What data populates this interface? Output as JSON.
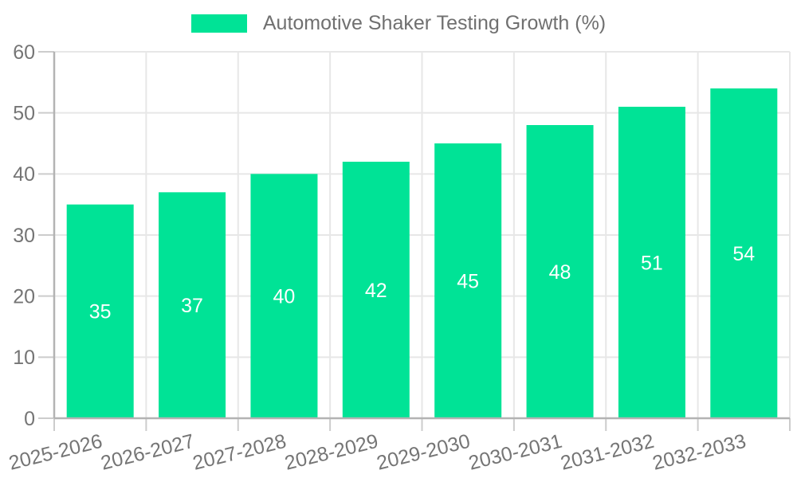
{
  "chart_data": {
    "type": "bar",
    "title": "Automotive Shaker Testing Growth (%)",
    "categories": [
      "2025-2026",
      "2026-2027",
      "2027-2028",
      "2028-2029",
      "2029-2030",
      "2030-2031",
      "2031-2032",
      "2032-2033"
    ],
    "series": [
      {
        "name": "Automotive Shaker Testing Growth (%)",
        "values": [
          35,
          37,
          40,
          42,
          45,
          48,
          51,
          54
        ]
      }
    ],
    "xlabel": "",
    "ylabel": "",
    "ylim": [
      0,
      60
    ],
    "yticks": [
      0,
      10,
      20,
      30,
      40,
      50,
      60
    ],
    "grid": true,
    "legend_position": "top-center",
    "x_label_rotation_deg": -14,
    "value_label_position": "inside-center",
    "colors": {
      "bar": "#00E396",
      "value_label": "#FFFFFF",
      "axis_line": "#B3B3B3",
      "tick_line": "#CCCCCC",
      "grid_line": "#E7E7E7",
      "tick_label": "#757575",
      "legend_text": "#707070",
      "background": "#FFFFFF"
    }
  }
}
